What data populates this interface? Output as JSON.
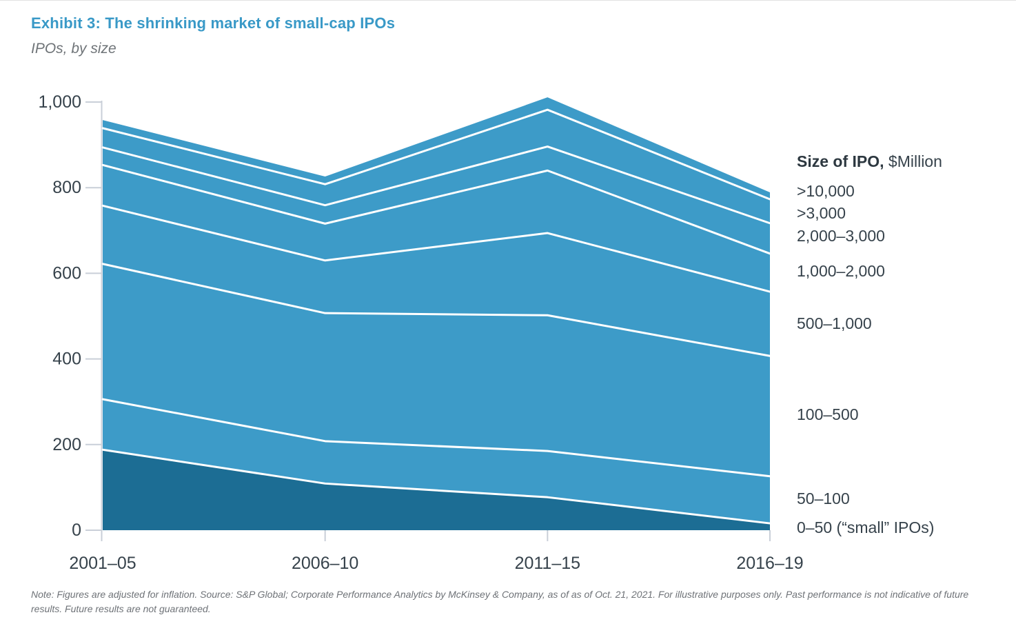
{
  "page": {
    "title": "Exhibit 3: The shrinking market of small-cap IPOs",
    "subtitle": "IPOs, by size",
    "note": "Note: Figures are adjusted for inflation. Source: S&P Global; Corporate Performance Analytics by McKinsey & Company, as of as of Oct. 21, 2021. For illustrative purposes only. Past performance is not indicative of future results. Future results are not guaranteed."
  },
  "legend": {
    "header_bold": "Size of IPO,",
    "header_regular": " $Million"
  },
  "chart_data": {
    "type": "area",
    "stacked": true,
    "title": "Exhibit 3: The shrinking market of small-cap IPOs",
    "subtitle": "IPOs, by size",
    "xlabel": "",
    "ylabel": "",
    "categories": [
      "2001–05",
      "2006–10",
      "2011–15",
      "2016–19"
    ],
    "series_order": "bottom-up",
    "series": [
      {
        "name": "0–50 (“small” IPOs)",
        "values": [
          188,
          109,
          77,
          16
        ]
      },
      {
        "name": "50–100",
        "values": [
          118,
          99,
          108,
          110
        ]
      },
      {
        "name": "100–500",
        "values": [
          316,
          299,
          317,
          281
        ]
      },
      {
        "name": "500–1,000",
        "values": [
          136,
          123,
          192,
          150
        ]
      },
      {
        "name": "1,000–2,000",
        "values": [
          95,
          86,
          146,
          89
        ]
      },
      {
        "name": "2,000–3,000",
        "values": [
          41,
          43,
          56,
          71
        ]
      },
      {
        "name": ">3,000",
        "values": [
          45,
          49,
          86,
          56
        ]
      },
      {
        "name": ">10,000",
        "values": [
          19,
          18,
          29,
          16
        ]
      }
    ],
    "totals": [
      958,
      826,
      1011,
      789
    ],
    "ylim": [
      0,
      1000
    ],
    "yticks": [
      0,
      200,
      400,
      600,
      800,
      1000
    ],
    "grid": false,
    "legend_position": "right",
    "legend_title": "Size of IPO, $Million",
    "colors": {
      "base_band": "#1c6d94",
      "bands": "#3d9bc8",
      "separator": "#ffffff",
      "title": "#3999c7",
      "axis_text": "#36424b",
      "muted_text": "#6f7478",
      "tick": "#c9cfd8"
    }
  }
}
